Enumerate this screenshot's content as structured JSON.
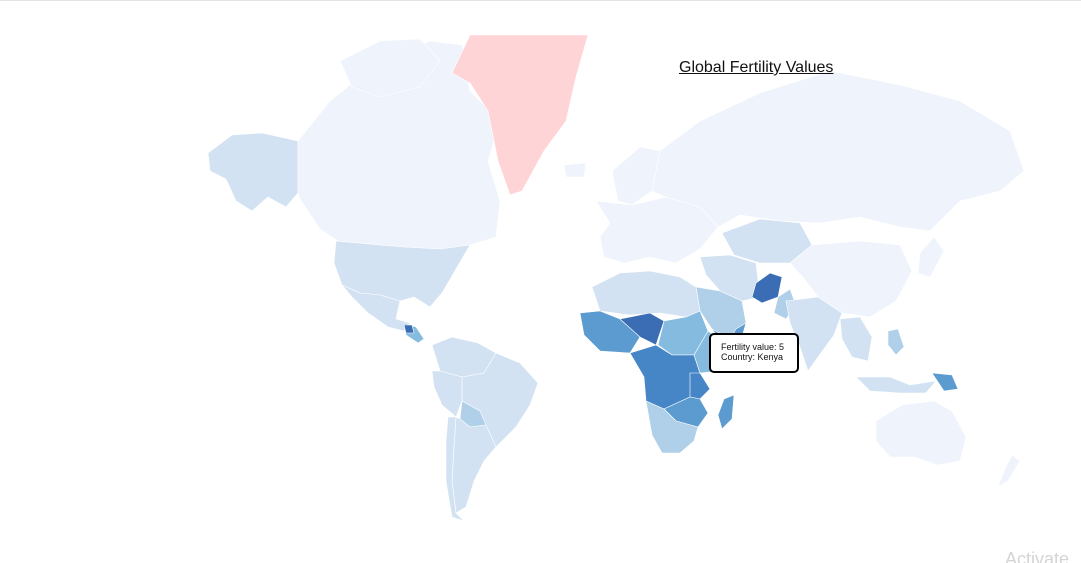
{
  "map": {
    "title": "Global Fertility Values",
    "tooltip": {
      "line1": "Fertility value: 5",
      "line2": "Country: Kenya"
    },
    "colors": {
      "very_low": "#eef3fc",
      "low": "#d2e2f2",
      "medium_low": "#afd0e8",
      "medium": "#85bbdf",
      "medium_high": "#5c9bd0",
      "high": "#4686c6",
      "very_high": "#3a6db3",
      "no_data": "#ffd4d6"
    }
  },
  "watermark": "Activate"
}
